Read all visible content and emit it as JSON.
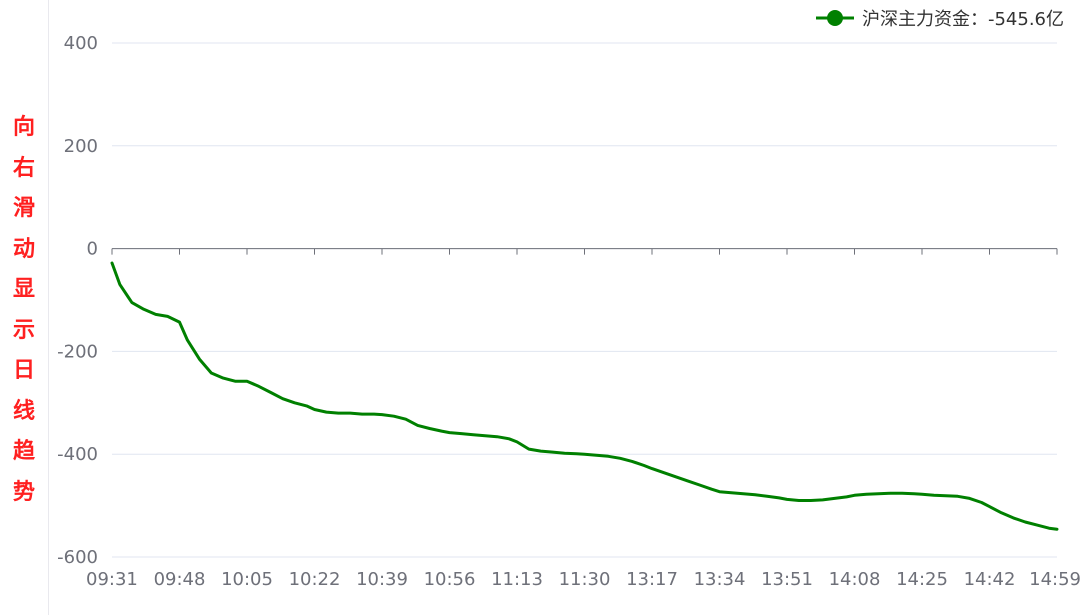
{
  "side_note": [
    "向",
    "右",
    "滑",
    "动",
    "显",
    "示",
    "日",
    "线",
    "趋",
    "势"
  ],
  "legend": {
    "text": "沪深主力资金：-545.6亿",
    "color": "#008000"
  },
  "chart_data": {
    "type": "line",
    "title": "",
    "xlabel": "",
    "ylabel": "",
    "ylim": [
      -600,
      400
    ],
    "yticks": [
      400,
      200,
      0,
      -200,
      -400,
      -600
    ],
    "x_tick_labels": [
      "09:31",
      "09:48",
      "10:05",
      "10:22",
      "10:39",
      "10:56",
      "11:13",
      "11:30",
      "13:17",
      "13:34",
      "13:51",
      "14:08",
      "14:25",
      "14:42",
      "14:59"
    ],
    "grid": true,
    "series": [
      {
        "name": "沪深主力资金",
        "color": "#008000",
        "x": [
          "09:31",
          "09:33",
          "09:36",
          "09:39",
          "09:42",
          "09:45",
          "09:48",
          "09:50",
          "09:53",
          "09:56",
          "09:59",
          "10:02",
          "10:05",
          "10:08",
          "10:11",
          "10:14",
          "10:17",
          "10:20",
          "10:22",
          "10:25",
          "10:28",
          "10:31",
          "10:34",
          "10:37",
          "10:39",
          "10:42",
          "10:45",
          "10:48",
          "10:51",
          "10:54",
          "10:56",
          "10:59",
          "11:02",
          "11:05",
          "11:08",
          "11:11",
          "11:13",
          "11:16",
          "11:19",
          "11:22",
          "11:25",
          "11:28",
          "11:30",
          "13:03",
          "13:06",
          "13:09",
          "13:12",
          "13:15",
          "13:17",
          "13:20",
          "13:23",
          "13:26",
          "13:29",
          "13:32",
          "13:34",
          "13:37",
          "13:40",
          "13:43",
          "13:46",
          "13:49",
          "13:51",
          "13:54",
          "13:57",
          "14:00",
          "14:03",
          "14:06",
          "14:08",
          "14:11",
          "14:14",
          "14:17",
          "14:20",
          "14:23",
          "14:25",
          "14:28",
          "14:31",
          "14:34",
          "14:37",
          "14:40",
          "14:42",
          "14:45",
          "14:48",
          "14:51",
          "14:54",
          "14:57",
          "14:59"
        ],
        "values": [
          -28,
          -70,
          -105,
          -118,
          -128,
          -132,
          -143,
          -178,
          -215,
          -242,
          -252,
          -258,
          -258,
          -268,
          -280,
          -292,
          -300,
          -306,
          -313,
          -318,
          -320,
          -320,
          -322,
          -322,
          -323,
          -326,
          -332,
          -344,
          -350,
          -355,
          -358,
          -360,
          -362,
          -364,
          -366,
          -370,
          -376,
          -390,
          -394,
          -396,
          -398,
          -399,
          -400,
          -402,
          -404,
          -408,
          -414,
          -422,
          -428,
          -436,
          -444,
          -452,
          -460,
          -468,
          -473,
          -475,
          -477,
          -479,
          -482,
          -485,
          -488,
          -490,
          -490,
          -489,
          -486,
          -483,
          -480,
          -478,
          -477,
          -476,
          -476,
          -477,
          -478,
          -480,
          -481,
          -482,
          -486,
          -494,
          -502,
          -514,
          -524,
          -532,
          -538,
          -544,
          -546
        ]
      }
    ]
  }
}
